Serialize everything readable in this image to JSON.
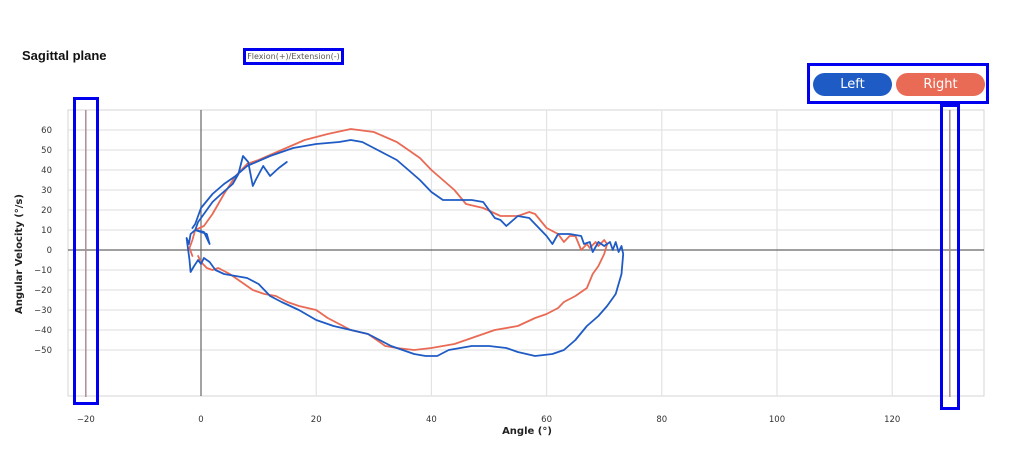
{
  "header": {
    "title": "Sagittal plane",
    "subtitle": "Flexion(+)/Extension(-)"
  },
  "legend": {
    "left_label": "Left",
    "right_label": "Right",
    "left_color": "#1f5bc4",
    "right_color": "#e96a55"
  },
  "markers": {
    "left_angle": -20,
    "right_angle": 130,
    "color": "#b08a96"
  },
  "chart_data": {
    "type": "line",
    "title": "Sagittal plane",
    "subtitle": "Flexion(+)/Extension(-)",
    "xlabel": "Angle (°)",
    "ylabel": "Angular Velocity (°/s)",
    "xlim": [
      -22.5,
      136
    ],
    "ylim": [
      -73,
      70
    ],
    "x_ticks": [
      -20,
      0,
      20,
      40,
      60,
      80,
      100,
      120
    ],
    "y_ticks": [
      60,
      50,
      40,
      30,
      20,
      10,
      0,
      -10,
      -20,
      -30,
      -40,
      -50
    ],
    "grid": true,
    "legend_position": "top-right",
    "series": [
      {
        "name": "Left",
        "color": "#1f5bc4",
        "points": [
          [
            14.9,
            44
          ],
          [
            13.5,
            41
          ],
          [
            12,
            37
          ],
          [
            10.8,
            42
          ],
          [
            9.5,
            35
          ],
          [
            9,
            32
          ],
          [
            8.2,
            44
          ],
          [
            7.3,
            47
          ],
          [
            6.5,
            38
          ],
          [
            5.5,
            33
          ],
          [
            3.5,
            28
          ],
          [
            2,
            24
          ],
          [
            0.5,
            18
          ],
          [
            -0.5,
            14
          ],
          [
            -1,
            10
          ],
          [
            1,
            8
          ],
          [
            1.5,
            3
          ],
          [
            0.5,
            9
          ],
          [
            -1,
            10
          ],
          [
            -1.8,
            8
          ],
          [
            -2.1,
            3
          ],
          [
            -2.5,
            6
          ],
          [
            -2,
            -5
          ],
          [
            -1.8,
            -11
          ],
          [
            -1.2,
            -8
          ],
          [
            -0.5,
            -5
          ],
          [
            0,
            -7
          ],
          [
            0.5,
            -4
          ],
          [
            1.5,
            -6
          ],
          [
            2.5,
            -10
          ],
          [
            4,
            -12
          ],
          [
            6,
            -13
          ],
          [
            8,
            -14
          ],
          [
            10,
            -17
          ],
          [
            12,
            -23
          ],
          [
            14,
            -26
          ],
          [
            17,
            -30
          ],
          [
            20,
            -35
          ],
          [
            23,
            -38
          ],
          [
            26,
            -40
          ],
          [
            29,
            -42
          ],
          [
            31,
            -45
          ],
          [
            33,
            -48
          ],
          [
            35,
            -50
          ],
          [
            37,
            -52
          ],
          [
            39,
            -53
          ],
          [
            41,
            -53
          ],
          [
            43,
            -50
          ],
          [
            45,
            -49
          ],
          [
            47,
            -48
          ],
          [
            50,
            -48
          ],
          [
            53,
            -49
          ],
          [
            55,
            -51
          ],
          [
            58,
            -53
          ],
          [
            61,
            -52
          ],
          [
            63,
            -50
          ],
          [
            65,
            -45
          ],
          [
            67,
            -38
          ],
          [
            69,
            -33
          ],
          [
            70.5,
            -28
          ],
          [
            72,
            -22
          ],
          [
            73,
            -12
          ],
          [
            73.3,
            -2
          ],
          [
            73,
            2
          ],
          [
            72.5,
            -1
          ],
          [
            72,
            4
          ],
          [
            71.5,
            0
          ],
          [
            71,
            4
          ],
          [
            70,
            2
          ],
          [
            69,
            4
          ],
          [
            68,
            -1
          ],
          [
            67.5,
            4
          ],
          [
            66.5,
            3
          ],
          [
            66,
            7
          ],
          [
            64,
            8
          ],
          [
            62,
            8
          ],
          [
            61,
            3
          ],
          [
            60,
            7
          ],
          [
            59,
            10
          ],
          [
            57,
            16
          ],
          [
            55,
            17
          ],
          [
            53,
            12
          ],
          [
            52,
            15
          ],
          [
            51,
            16
          ],
          [
            49,
            24
          ],
          [
            47,
            25
          ],
          [
            45,
            25
          ],
          [
            42,
            25
          ],
          [
            40,
            29
          ],
          [
            38,
            35
          ],
          [
            36,
            40
          ],
          [
            34,
            45
          ],
          [
            32,
            48
          ],
          [
            30,
            51
          ],
          [
            28,
            54
          ],
          [
            26,
            55
          ],
          [
            24,
            54
          ],
          [
            20,
            53
          ],
          [
            16,
            51
          ],
          [
            12,
            47
          ],
          [
            8,
            42
          ],
          [
            6,
            37
          ],
          [
            4,
            33
          ],
          [
            2,
            28
          ],
          [
            0,
            21
          ],
          [
            -1,
            13
          ],
          [
            -1.5,
            11
          ]
        ]
      },
      {
        "name": "Right",
        "color": "#e96a55",
        "points": [
          [
            -0.5,
            -3
          ],
          [
            0,
            -6
          ],
          [
            1,
            -9
          ],
          [
            2,
            -10
          ],
          [
            3,
            -9
          ],
          [
            5,
            -12
          ],
          [
            7,
            -16
          ],
          [
            9,
            -20
          ],
          [
            11,
            -22
          ],
          [
            13,
            -23
          ],
          [
            15,
            -26
          ],
          [
            17,
            -28
          ],
          [
            20,
            -30
          ],
          [
            22,
            -34
          ],
          [
            24,
            -37
          ],
          [
            26,
            -40
          ],
          [
            29,
            -42
          ],
          [
            32,
            -48
          ],
          [
            34,
            -49
          ],
          [
            37,
            -50
          ],
          [
            40,
            -49
          ],
          [
            42,
            -48
          ],
          [
            44,
            -47
          ],
          [
            46,
            -45
          ],
          [
            48,
            -43
          ],
          [
            51,
            -40
          ],
          [
            55,
            -38
          ],
          [
            58,
            -34
          ],
          [
            60,
            -32
          ],
          [
            62,
            -29
          ],
          [
            63,
            -26
          ],
          [
            65,
            -23
          ],
          [
            67,
            -19
          ],
          [
            68,
            -12
          ],
          [
            69,
            -8
          ],
          [
            70,
            -2
          ],
          [
            70.5,
            3
          ],
          [
            70,
            5
          ],
          [
            69,
            2
          ],
          [
            68.5,
            4
          ],
          [
            67.5,
            1
          ],
          [
            67,
            3
          ],
          [
            66,
            0
          ],
          [
            65,
            7
          ],
          [
            64,
            7
          ],
          [
            63,
            4
          ],
          [
            62,
            8
          ],
          [
            60,
            11
          ],
          [
            58,
            18
          ],
          [
            57,
            19
          ],
          [
            55,
            17
          ],
          [
            52,
            17
          ],
          [
            49,
            21
          ],
          [
            46,
            23
          ],
          [
            44,
            30
          ],
          [
            42,
            35
          ],
          [
            40,
            40
          ],
          [
            38,
            46
          ],
          [
            36,
            50
          ],
          [
            34,
            54
          ],
          [
            30,
            59
          ],
          [
            26,
            60.5
          ],
          [
            22,
            58
          ],
          [
            18,
            55
          ],
          [
            14,
            50
          ],
          [
            10,
            45
          ],
          [
            8,
            43
          ],
          [
            6,
            37
          ],
          [
            4,
            28
          ],
          [
            2,
            18
          ],
          [
            0.5,
            12
          ],
          [
            -1,
            10
          ],
          [
            -1.5,
            5
          ],
          [
            -2,
            1
          ],
          [
            -1.5,
            -3
          ]
        ]
      }
    ]
  }
}
